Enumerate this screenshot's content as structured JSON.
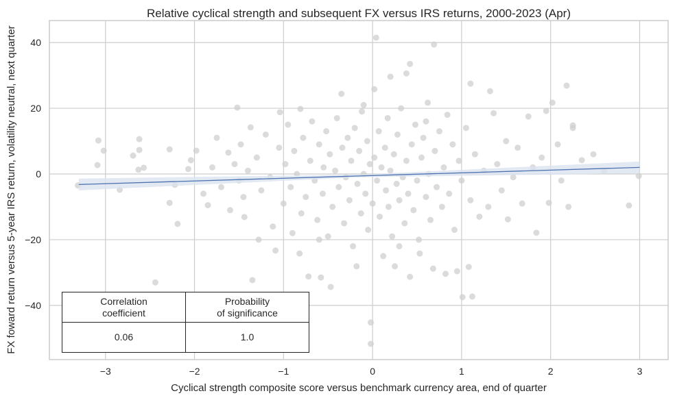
{
  "chart_data": {
    "type": "scatter",
    "title": "Relative cyclical strength and subsequent FX versus IRS returns, 2000-2023 (Apr)",
    "xlabel": "Cyclical strength composite score versus benchmark currency area, end of quarter",
    "ylabel": "FX foward return versus 5-year IRS return, volatility neutral, next quarter",
    "xlim": [
      -3.63,
      3.32
    ],
    "ylim": [
      -56.5,
      46.7
    ],
    "xticks": [
      -3,
      -2,
      -1,
      0,
      1,
      2,
      3
    ],
    "xtick_labels": [
      "−3",
      "−2",
      "−1",
      "0",
      "1",
      "2",
      "3"
    ],
    "yticks": [
      40,
      20,
      0,
      -20,
      -40
    ],
    "ytick_labels": [
      "40",
      "20",
      "0",
      "−20",
      "−40"
    ],
    "grid": true,
    "point_color": "#cfcfcf",
    "line_color": "#4c72b0",
    "band_color": "#dbe3f0",
    "regression": {
      "x": [
        -3.3,
        3.0
      ],
      "y": [
        -3.2,
        2.0
      ],
      "ci_halfwidth": [
        1.8,
        0.4,
        1.8
      ]
    },
    "points": [
      [
        -3.08,
        10.2
      ],
      [
        -3.02,
        7.1
      ],
      [
        -3.09,
        2.7
      ],
      [
        -3.31,
        -3.5
      ],
      [
        -2.84,
        -4.8
      ],
      [
        -2.69,
        5.6
      ],
      [
        -2.62,
        10.6
      ],
      [
        -2.62,
        7.3
      ],
      [
        -2.57,
        1.9
      ],
      [
        -2.63,
        1.3
      ],
      [
        -2.28,
        7.5
      ],
      [
        -2.28,
        -8.8
      ],
      [
        -2.22,
        -3.3
      ],
      [
        -2.19,
        -15.2
      ],
      [
        -2.44,
        -33
      ],
      [
        -2.07,
        1.5
      ],
      [
        -1.98,
        7.1
      ],
      [
        -2.04,
        4.2
      ],
      [
        -1.9,
        -6
      ],
      [
        -1.85,
        -9.5
      ],
      [
        -1.8,
        2
      ],
      [
        -1.75,
        11
      ],
      [
        -1.7,
        -4
      ],
      [
        -1.62,
        6.5
      ],
      [
        -1.6,
        -11
      ],
      [
        -1.55,
        3
      ],
      [
        -1.5,
        -2
      ],
      [
        -1.52,
        20.2
      ],
      [
        -1.48,
        9
      ],
      [
        -1.45,
        -7
      ],
      [
        -1.44,
        -13.1
      ],
      [
        -1.4,
        1
      ],
      [
        -1.37,
        14.2
      ],
      [
        -1.35,
        -32.3
      ],
      [
        -1.3,
        5
      ],
      [
        -1.28,
        -20
      ],
      [
        -1.25,
        -5
      ],
      [
        -1.2,
        12
      ],
      [
        -1.15,
        -1
      ],
      [
        -1.12,
        -16
      ],
      [
        -1.09,
        -23.3
      ],
      [
        -1.05,
        8
      ],
      [
        -1.04,
        18.8
      ],
      [
        -1.0,
        -9
      ],
      [
        -0.98,
        3
      ],
      [
        -0.95,
        15
      ],
      [
        -0.92,
        -4
      ],
      [
        -0.9,
        -18
      ],
      [
        -0.88,
        7
      ],
      [
        -0.85,
        0
      ],
      [
        -0.82,
        -24.2
      ],
      [
        -0.81,
        19.8
      ],
      [
        -0.8,
        -12
      ],
      [
        -0.78,
        11
      ],
      [
        -0.75,
        -7
      ],
      [
        -0.72,
        -31.2
      ],
      [
        -0.7,
        4
      ],
      [
        -0.68,
        16
      ],
      [
        -0.65,
        -2
      ],
      [
        -0.62,
        -14
      ],
      [
        -0.6,
        9
      ],
      [
        -0.58,
        -31.5
      ],
      [
        -0.56,
        -6
      ],
      [
        -0.55,
        2
      ],
      [
        -0.52,
        13
      ],
      [
        -0.5,
        -19
      ],
      [
        -0.48,
        6
      ],
      [
        -0.47,
        -34.4
      ],
      [
        -0.45,
        -10
      ],
      [
        -0.42,
        1
      ],
      [
        -0.4,
        17
      ],
      [
        -0.38,
        -4
      ],
      [
        -0.35,
        24.4
      ],
      [
        -0.34,
        8
      ],
      [
        -0.32,
        -15
      ],
      [
        -0.3,
        -1
      ],
      [
        -0.28,
        11
      ],
      [
        -0.26,
        -8
      ],
      [
        -0.24,
        4
      ],
      [
        -0.22,
        -22
      ],
      [
        -0.2,
        14
      ],
      [
        -0.18,
        -28.1
      ],
      [
        -0.17,
        -3
      ],
      [
        -0.15,
        7
      ],
      [
        -0.13,
        -12
      ],
      [
        -0.12,
        19
      ],
      [
        -0.1,
        0
      ],
      [
        -0.08,
        -6
      ],
      [
        -0.06,
        10
      ],
      [
        -0.05,
        -17
      ],
      [
        -0.03,
        3
      ],
      [
        -0.02,
        -45.2
      ],
      [
        -0.02,
        -51.7
      ],
      [
        0.0,
        -9
      ],
      [
        0.02,
        25.8
      ],
      [
        0.02,
        5
      ],
      [
        0.04,
        41.5
      ],
      [
        0.05,
        -2
      ],
      [
        0.07,
        13
      ],
      [
        0.08,
        -13
      ],
      [
        0.1,
        2
      ],
      [
        0.12,
        -25
      ],
      [
        0.14,
        8
      ],
      [
        0.15,
        -5
      ],
      [
        0.17,
        17
      ],
      [
        0.18,
        -10
      ],
      [
        0.2,
        29.6
      ],
      [
        0.2,
        1
      ],
      [
        0.22,
        -19
      ],
      [
        0.24,
        6
      ],
      [
        0.25,
        -28.1
      ],
      [
        0.27,
        -3
      ],
      [
        0.28,
        12
      ],
      [
        0.3,
        -8
      ],
      [
        0.32,
        20
      ],
      [
        0.34,
        -1
      ],
      [
        0.36,
        -15
      ],
      [
        0.38,
        30.6
      ],
      [
        0.38,
        4
      ],
      [
        0.4,
        -6
      ],
      [
        0.42,
        33.5
      ],
      [
        0.42,
        -31.3
      ],
      [
        0.44,
        9
      ],
      [
        0.46,
        -11
      ],
      [
        0.48,
        15
      ],
      [
        0.5,
        -2
      ],
      [
        0.52,
        -20
      ],
      [
        0.53,
        -24.2
      ],
      [
        0.55,
        5
      ],
      [
        0.57,
        11
      ],
      [
        0.6,
        -7
      ],
      [
        0.62,
        21.7
      ],
      [
        0.63,
        0
      ],
      [
        0.65,
        -14
      ],
      [
        0.68,
        -28.8
      ],
      [
        0.69,
        39.4
      ],
      [
        0.7,
        7
      ],
      [
        0.72,
        -4
      ],
      [
        0.75,
        13
      ],
      [
        0.78,
        -10
      ],
      [
        0.8,
        2
      ],
      [
        0.82,
        -30.4
      ],
      [
        0.84,
        18
      ],
      [
        0.86,
        -6
      ],
      [
        0.9,
        9
      ],
      [
        0.92,
        -17
      ],
      [
        0.95,
        -29.6
      ],
      [
        0.97,
        4
      ],
      [
        1.0,
        -2
      ],
      [
        1.01,
        -37.5
      ],
      [
        1.05,
        14
      ],
      [
        1.08,
        -28.3
      ],
      [
        1.1,
        27.5
      ],
      [
        1.1,
        -8
      ],
      [
        1.12,
        -37.3
      ],
      [
        1.15,
        6
      ],
      [
        1.2,
        -13
      ],
      [
        1.25,
        1
      ],
      [
        1.3,
        -10
      ],
      [
        1.32,
        25.2
      ],
      [
        1.36,
        18.5
      ],
      [
        1.4,
        3
      ],
      [
        1.45,
        -5
      ],
      [
        1.5,
        10
      ],
      [
        1.52,
        -13.8
      ],
      [
        1.58,
        -1
      ],
      [
        1.63,
        8
      ],
      [
        1.68,
        -9
      ],
      [
        1.75,
        17.5
      ],
      [
        1.8,
        2
      ],
      [
        1.84,
        -17.9
      ],
      [
        1.9,
        5
      ],
      [
        1.95,
        19.2
      ],
      [
        1.98,
        -8.8
      ],
      [
        2.02,
        21.7
      ],
      [
        2.08,
        9
      ],
      [
        2.12,
        -2
      ],
      [
        2.18,
        26.9
      ],
      [
        2.2,
        -10
      ],
      [
        2.25,
        14.8
      ],
      [
        2.25,
        14
      ],
      [
        2.35,
        4.2
      ],
      [
        2.48,
        6
      ],
      [
        2.6,
        1
      ],
      [
        2.88,
        -9.6
      ],
      [
        2.99,
        -0.6
      ],
      [
        -0.6,
        -20
      ],
      [
        0.3,
        -22
      ],
      [
        -0.1,
        21
      ],
      [
        0.6,
        16
      ]
    ]
  },
  "stats_table": {
    "headers": [
      "Correlation\ncoefficient",
      "Probability\nof significance"
    ],
    "values": [
      "0.06",
      "1.0"
    ]
  }
}
